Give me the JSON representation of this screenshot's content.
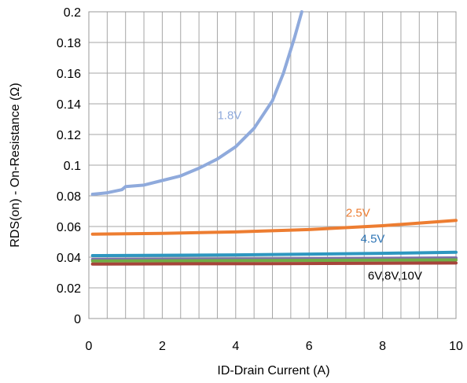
{
  "chart_data": {
    "type": "line",
    "title": "",
    "xlabel": "ID-Drain Current (A)",
    "ylabel": "RDS(on) - On-Resistance (Ω)",
    "xlim": [
      0,
      10
    ],
    "ylim": [
      0,
      0.2
    ],
    "x_ticks": [
      "0",
      "2",
      "4",
      "6",
      "8",
      "10"
    ],
    "y_ticks": [
      "0",
      "0.02",
      "0.04",
      "0.06",
      "0.08",
      "0.1",
      "0.12",
      "0.14",
      "0.16",
      "0.18",
      "0.2"
    ],
    "grid": true,
    "legend": "none",
    "series": [
      {
        "name": "1.8V",
        "color": "#8FAADC",
        "points": [
          [
            0.1,
            0.081
          ],
          [
            0.5,
            0.082
          ],
          [
            0.9,
            0.084
          ],
          [
            1.0,
            0.086
          ],
          [
            1.5,
            0.087
          ],
          [
            2.0,
            0.09
          ],
          [
            2.5,
            0.093
          ],
          [
            3.0,
            0.098
          ],
          [
            3.5,
            0.104
          ],
          [
            4.0,
            0.112
          ],
          [
            4.5,
            0.124
          ],
          [
            5.0,
            0.142
          ],
          [
            5.3,
            0.16
          ],
          [
            5.6,
            0.183
          ],
          [
            5.8,
            0.2
          ]
        ]
      },
      {
        "name": "2.5V",
        "color": "#ED7D31",
        "points": [
          [
            0.1,
            0.055
          ],
          [
            2,
            0.0555
          ],
          [
            4,
            0.0565
          ],
          [
            6,
            0.058
          ],
          [
            8,
            0.0605
          ],
          [
            10,
            0.064
          ]
        ]
      },
      {
        "name": "4.5V",
        "color": "#2E97C0",
        "points": [
          [
            0.1,
            0.041
          ],
          [
            2,
            0.0412
          ],
          [
            4,
            0.0415
          ],
          [
            6,
            0.042
          ],
          [
            8,
            0.0425
          ],
          [
            10,
            0.0432
          ]
        ]
      },
      {
        "name": "",
        "color": "#7F6FA8",
        "points": [
          [
            0.1,
            0.0385
          ],
          [
            5,
            0.0388
          ],
          [
            10,
            0.0395
          ]
        ]
      },
      {
        "name": "",
        "color": "#70AD47",
        "points": [
          [
            0.1,
            0.0375
          ],
          [
            5,
            0.0378
          ],
          [
            10,
            0.0382
          ]
        ]
      },
      {
        "name": "",
        "color": "#A5443A",
        "points": [
          [
            0.1,
            0.0355
          ],
          [
            5,
            0.0358
          ],
          [
            10,
            0.0362
          ]
        ]
      }
    ],
    "annotations": [
      {
        "text": "1.8V",
        "x": 3.5,
        "y": 0.13,
        "color": "#8FAADC"
      },
      {
        "text": "2.5V",
        "x": 7.0,
        "y": 0.0665,
        "color": "#ED7D31"
      },
      {
        "text": "4.5V",
        "x": 7.4,
        "y": 0.0495,
        "color": "#2E75B6"
      },
      {
        "text": "6V,8V,10V",
        "x": 7.6,
        "y": 0.0255,
        "color": "#000000"
      }
    ]
  }
}
